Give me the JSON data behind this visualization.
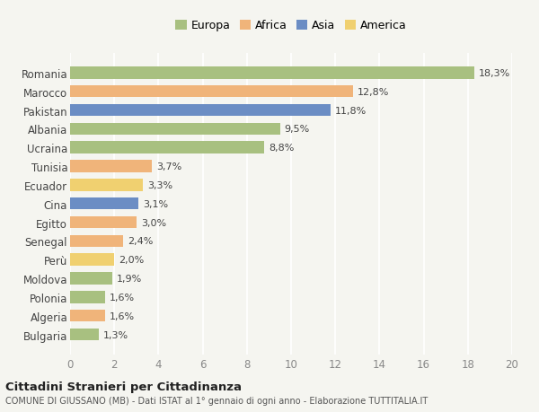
{
  "categories": [
    "Romania",
    "Marocco",
    "Pakistan",
    "Albania",
    "Ucraina",
    "Tunisia",
    "Ecuador",
    "Cina",
    "Egitto",
    "Senegal",
    "Perù",
    "Moldova",
    "Polonia",
    "Algeria",
    "Bulgaria"
  ],
  "values": [
    18.3,
    12.8,
    11.8,
    9.5,
    8.8,
    3.7,
    3.3,
    3.1,
    3.0,
    2.4,
    2.0,
    1.9,
    1.6,
    1.6,
    1.3
  ],
  "labels": [
    "18,3%",
    "12,8%",
    "11,8%",
    "9,5%",
    "8,8%",
    "3,7%",
    "3,3%",
    "3,1%",
    "3,0%",
    "2,4%",
    "2,0%",
    "1,9%",
    "1,6%",
    "1,6%",
    "1,3%"
  ],
  "continents": [
    "Europa",
    "Africa",
    "Asia",
    "Europa",
    "Europa",
    "Africa",
    "America",
    "Asia",
    "Africa",
    "Africa",
    "America",
    "Europa",
    "Europa",
    "Africa",
    "Europa"
  ],
  "colors": {
    "Europa": "#a8c080",
    "Africa": "#f0b47a",
    "Asia": "#6b8dc4",
    "America": "#f0d070"
  },
  "xlim": [
    0,
    20
  ],
  "xticks": [
    0,
    2,
    4,
    6,
    8,
    10,
    12,
    14,
    16,
    18,
    20
  ],
  "title": "Cittadini Stranieri per Cittadinanza",
  "subtitle": "COMUNE DI GIUSSANO (MB) - Dati ISTAT al 1° gennaio di ogni anno - Elaborazione TUTTITALIA.IT",
  "background_color": "#f5f5f0",
  "grid_color": "#ffffff",
  "bar_height": 0.65,
  "legend_order": [
    "Europa",
    "Africa",
    "Asia",
    "America"
  ]
}
